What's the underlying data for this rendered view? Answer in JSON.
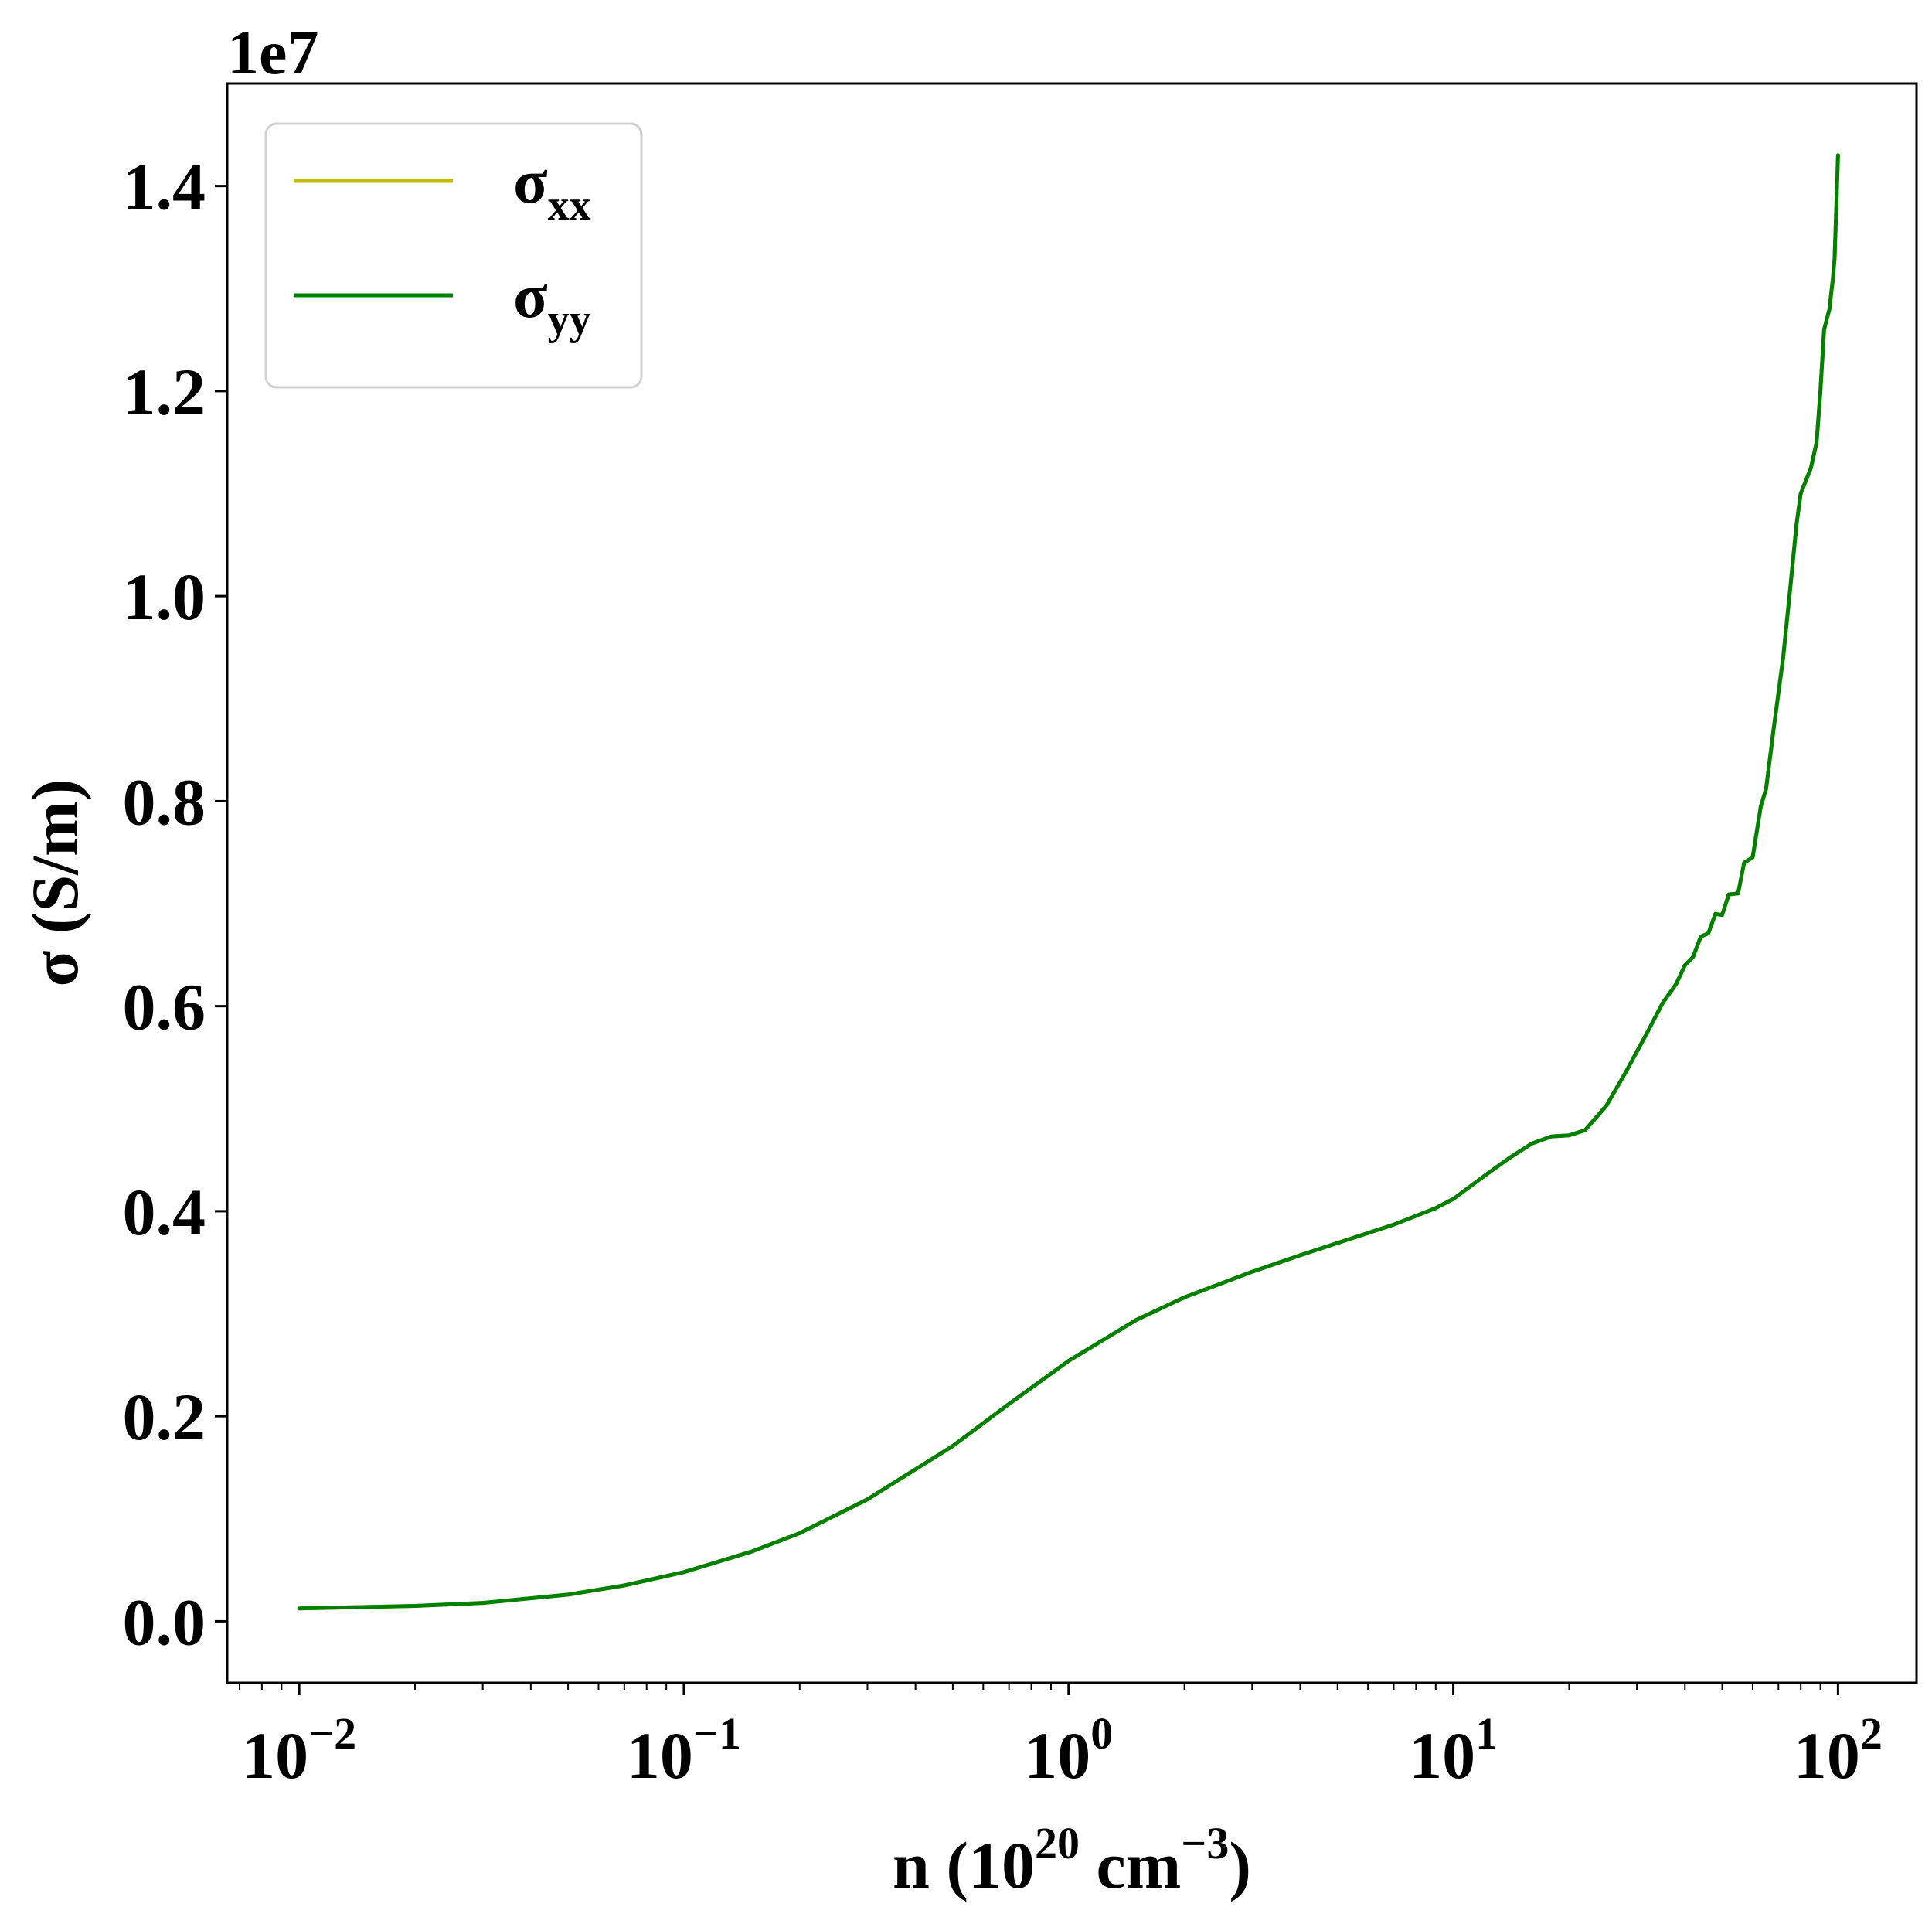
{
  "chart_data": {
    "type": "line",
    "title": "",
    "xlabel": {
      "prefix": "n (10",
      "exp1": "20",
      "mid": " cm",
      "exp2": "−3",
      "suffix": ")"
    },
    "ylabel": "σ (S/m)",
    "y_offset_label": "1e7",
    "x_scale": "log",
    "xlim": [
      0.0065,
      160
    ],
    "ylim": [
      -0.06,
      1.5
    ],
    "grid": false,
    "legend_position": "top-left",
    "x_ticks": [
      {
        "value": 0.01,
        "base": "10",
        "exp": "−2"
      },
      {
        "value": 0.1,
        "base": "10",
        "exp": "−1"
      },
      {
        "value": 1,
        "base": "10",
        "exp": "0"
      },
      {
        "value": 10,
        "base": "10",
        "exp": "1"
      },
      {
        "value": 100,
        "base": "10",
        "exp": "2"
      }
    ],
    "y_ticks": [
      {
        "value": 0.0,
        "label": "0.0"
      },
      {
        "value": 0.2,
        "label": "0.2"
      },
      {
        "value": 0.4,
        "label": "0.4"
      },
      {
        "value": 0.6,
        "label": "0.6"
      },
      {
        "value": 0.8,
        "label": "0.8"
      },
      {
        "value": 1.0,
        "label": "1.0"
      },
      {
        "value": 1.2,
        "label": "1.2"
      },
      {
        "value": 1.4,
        "label": "1.4"
      }
    ],
    "x": [
      0.01,
      0.02,
      0.03,
      0.05,
      0.07,
      0.1,
      0.15,
      0.2,
      0.3,
      0.5,
      0.7,
      1.0,
      1.5,
      2.0,
      3.0,
      4.0,
      5.0,
      7.0,
      9.0,
      10.0,
      12.0,
      14.0,
      16.0,
      18.0,
      20.0,
      22.0,
      25.0,
      28.0,
      32.0,
      35.0,
      38.0,
      40.0,
      42.0,
      44.0,
      46.0,
      48.0,
      50.0,
      52.0,
      55.0,
      57.0,
      60.0,
      63.0,
      65.0,
      68.0,
      72.0,
      75.0,
      78.0,
      80.0,
      85.0,
      88.0,
      90.0,
      92.0,
      95.0,
      97.0,
      98.0,
      100.0
    ],
    "series": [
      {
        "name": "σxx",
        "label_base": "σ",
        "label_sub": "xx",
        "color": "#bfbf00",
        "y": [
          0.0125,
          0.015,
          0.018,
          0.026,
          0.035,
          0.048,
          0.068,
          0.086,
          0.119,
          0.171,
          0.212,
          0.254,
          0.294,
          0.316,
          0.341,
          0.357,
          0.369,
          0.387,
          0.403,
          0.412,
          0.434,
          0.452,
          0.466,
          0.473,
          0.474,
          0.479,
          0.503,
          0.535,
          0.575,
          0.603,
          0.622,
          0.64,
          0.648,
          0.668,
          0.671,
          0.69,
          0.689,
          0.709,
          0.71,
          0.74,
          0.745,
          0.795,
          0.812,
          0.87,
          0.94,
          1.005,
          1.07,
          1.1,
          1.125,
          1.15,
          1.2,
          1.26,
          1.28,
          1.31,
          1.33,
          1.43
        ]
      },
      {
        "name": "σyy",
        "label_base": "σ",
        "label_sub": "yy",
        "color": "#008000",
        "y": [
          0.0125,
          0.015,
          0.018,
          0.026,
          0.035,
          0.048,
          0.068,
          0.086,
          0.119,
          0.171,
          0.212,
          0.254,
          0.294,
          0.316,
          0.341,
          0.357,
          0.369,
          0.387,
          0.403,
          0.412,
          0.434,
          0.452,
          0.466,
          0.473,
          0.474,
          0.479,
          0.503,
          0.535,
          0.575,
          0.603,
          0.622,
          0.64,
          0.648,
          0.668,
          0.671,
          0.69,
          0.689,
          0.709,
          0.71,
          0.74,
          0.745,
          0.795,
          0.812,
          0.87,
          0.94,
          1.005,
          1.07,
          1.1,
          1.125,
          1.15,
          1.2,
          1.26,
          1.28,
          1.31,
          1.33,
          1.43
        ]
      }
    ]
  }
}
